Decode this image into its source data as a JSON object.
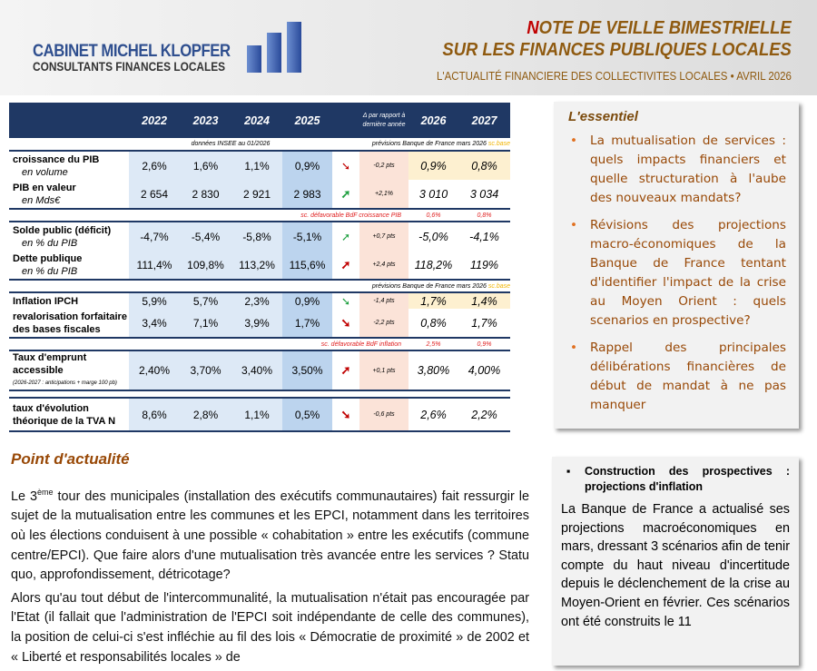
{
  "header": {
    "logo_line1": "CABINET MICHEL KLOPFER",
    "logo_line2": "CONSULTANTS FINANCES LOCALES",
    "title_initial": "N",
    "title_line1_rest": "OTE DE VEILLE BIMESTRIELLE",
    "title_line2": "SUR LES FINANCES PUBLIQUES LOCALES",
    "subtitle": "L'ACTUALITÉ FINANCIERE DES COLLECTIVITES LOCALES • AVRIL 2026"
  },
  "table": {
    "columns": [
      "2022",
      "2023",
      "2024",
      "2025",
      "Δ par rapport à dernière année",
      "2026",
      "2027"
    ],
    "note_insee": "données INSEE au 01/2026",
    "note_bdf": "prévisions Banque de France mars 2026",
    "note_base": "sc.base",
    "rows": [
      {
        "label": "croissance du PIB",
        "sub": "en volume",
        "values": [
          "2,6%",
          "1,6%",
          "1,1%",
          "0,9%"
        ],
        "trend": "down",
        "delta": "-0,2 pts",
        "forecast": [
          "0,9%",
          "0,8%"
        ]
      },
      {
        "label": "PIB en valeur",
        "sub": "en Mds€",
        "values": [
          "2 654",
          "2 830",
          "2 921",
          "2 983"
        ],
        "trend": "up",
        "delta": "+2,1%",
        "forecast": [
          "3 010",
          "3 034"
        ]
      },
      {
        "label": "Solde public (déficit)",
        "sub": "en % du PIB",
        "values": [
          "-4,7%",
          "-5,4%",
          "-5,8%",
          "-5,1%"
        ],
        "trend": "up",
        "delta": "+0,7 pts",
        "forecast": [
          "-5,0%",
          "-4,1%"
        ]
      },
      {
        "label": "Dette publique",
        "sub": "en % du PIB",
        "values": [
          "111,4%",
          "109,8%",
          "113,2%",
          "115,6%"
        ],
        "trend": "up",
        "delta": "+2,4 pts",
        "forecast": [
          "118,2%",
          "119%"
        ]
      },
      {
        "label": "Inflation IPCH",
        "sub": "",
        "values": [
          "5,9%",
          "5,7%",
          "2,3%",
          "0,9%"
        ],
        "trend": "down",
        "delta": "-1,4 pts",
        "forecast": [
          "1,7%",
          "1,4%"
        ]
      },
      {
        "label": "revalorisation forfaitaire des bases fiscales",
        "sub": "",
        "values": [
          "3,4%",
          "7,1%",
          "3,9%",
          "1,7%"
        ],
        "trend": "down",
        "delta": "-2,2 pts",
        "forecast": [
          "0,8%",
          "1,7%"
        ]
      },
      {
        "label": "Taux d'emprunt accessible",
        "sub": "(2026-2027 : anticipations + marge 100 pb)",
        "values": [
          "2,40%",
          "3,70%",
          "3,40%",
          "3,50%"
        ],
        "trend": "up",
        "delta": "+0,1 pts",
        "forecast": [
          "3,80%",
          "4,00%"
        ]
      },
      {
        "label": "taux d'évolution théorique de la TVA N",
        "sub": "",
        "values": [
          "8,6%",
          "2,8%",
          "1,1%",
          "0,5%"
        ],
        "trend": "down",
        "delta": "-0,6 pts",
        "forecast": [
          "2,6%",
          "2,2%"
        ]
      }
    ],
    "scen_pib": {
      "label": "sc. défavorable BdF croissance PIB",
      "v2026": "0,6%",
      "v2027": "0,8%"
    },
    "scen_infl": {
      "label": "sc. défavorable BdF inflation",
      "v2026": "2,5%",
      "v2027": "0,9%"
    },
    "colors": {
      "header": "#1f3864",
      "up": "#1fa040",
      "down": "#c00000"
    }
  },
  "essentiel": {
    "title": "L'essentiel",
    "items": [
      "La mutualisation de services : quels impacts financiers et quelle structuration à l'aube des nouveaux mandats?",
      "Révisions des projections macro-économiques de la Banque de France tentant d'identifier l'impact de la crise au Moyen Orient : quels scenarios en prospective?",
      "Rappel des principales délibérations financières de début de mandat à ne pas manquer"
    ]
  },
  "article": {
    "title": "Point d'actualité",
    "p1_a": "Le 3",
    "p1_sup": "ème",
    "p1_b": " tour des municipales (installation des exécutifs communautaires) fait ressurgir le sujet de la mutualisation entre les communes et les EPCI, notamment dans les territoires où les élections conduisent à une possible « cohabitation » entre les exécutifs (commune centre/EPCI). Que faire alors d'une mutualisation très avancée entre les services ? Statu quo, approfondissement, détricotage?",
    "p2": "Alors qu'au tout début de l'intercommunalité, la mutualisation n'était pas encouragée par l'Etat (il fallait que l'administration de l'EPCI soit indépendante de celle des communes), la position de celui-ci s'est infléchie au fil des lois « Démocratie de proximité » de 2002 et « Liberté et responsabilités locales » de"
  },
  "sidebox": {
    "title": "Construction des prospectives : projections d'inflation",
    "text": "La Banque de France a actualisé ses projections macroéconomiques en mars, dressant 3 scénarios afin de tenir compte du haut niveau d'incertitude depuis le déclenchement de la crise au Moyen-Orient en février. Ces scénarios ont été construits le 11"
  }
}
